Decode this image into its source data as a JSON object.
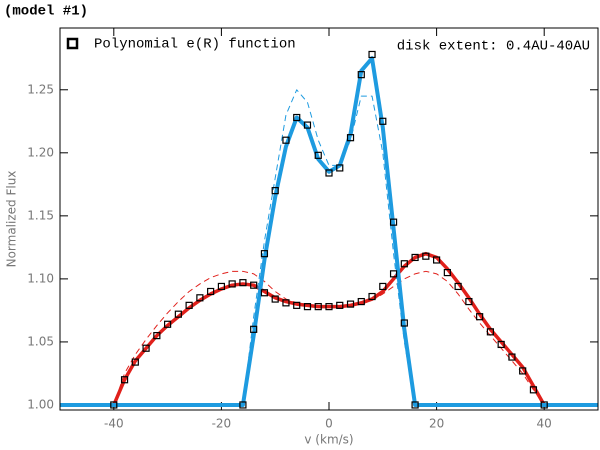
{
  "chart_data": {
    "type": "line",
    "title": "(model #1)",
    "annotation": "disk extent: 0.4AU-40AU",
    "xlabel": "v (km/s)",
    "ylabel": "Normalized Flux",
    "xlim": [
      -50,
      50
    ],
    "ylim": [
      0.996,
      1.299
    ],
    "xticks": [
      -40,
      -20,
      0,
      20,
      40
    ],
    "yticks": [
      {
        "value": 1.0,
        "label": "1.00"
      },
      {
        "value": 1.05,
        "label": "1.05"
      },
      {
        "value": 1.1,
        "label": "1.10"
      },
      {
        "value": 1.15,
        "label": "1.15"
      },
      {
        "value": 1.2,
        "label": "1.20"
      },
      {
        "value": 1.25,
        "label": "1.25"
      }
    ],
    "legend_loc": "upper left",
    "x": [
      -50,
      -48,
      -46,
      -44,
      -42,
      -40,
      -38,
      -36,
      -34,
      -32,
      -30,
      -28,
      -26,
      -24,
      -22,
      -20,
      -18,
      -16,
      -14,
      -12,
      -10,
      -8,
      -6,
      -4,
      -2,
      0,
      2,
      4,
      6,
      8,
      10,
      12,
      14,
      16,
      18,
      20,
      22,
      24,
      26,
      28,
      30,
      32,
      34,
      36,
      38,
      40,
      42,
      44,
      46,
      48,
      50
    ],
    "series": [
      {
        "color": "#e0201b",
        "style": "solid",
        "width": 3.5,
        "values": [
          1,
          1,
          1,
          1,
          1,
          1.0,
          1.02,
          1.035,
          1.045,
          1.055,
          1.063,
          1.07,
          1.077,
          1.083,
          1.088,
          1.092,
          1.095,
          1.096,
          1.095,
          1.09,
          1.085,
          1.082,
          1.08,
          1.079,
          1.078,
          1.078,
          1.078,
          1.079,
          1.081,
          1.084,
          1.09,
          1.1,
          1.11,
          1.117,
          1.12,
          1.117,
          1.108,
          1.097,
          1.085,
          1.072,
          1.06,
          1.05,
          1.04,
          1.03,
          1.015,
          1.0,
          1,
          1,
          1,
          1,
          1
        ]
      },
      {
        "color": "#e0201b",
        "style": "dashed",
        "width": 1,
        "values": [
          1,
          1,
          1,
          1,
          1,
          1.0,
          1.025,
          1.04,
          1.052,
          1.063,
          1.073,
          1.082,
          1.09,
          1.096,
          1.101,
          1.104,
          1.106,
          1.106,
          1.104,
          1.098,
          1.09,
          1.084,
          1.081,
          1.079,
          1.078,
          1.078,
          1.078,
          1.079,
          1.08,
          1.083,
          1.088,
          1.094,
          1.1,
          1.104,
          1.106,
          1.104,
          1.098,
          1.088,
          1.076,
          1.065,
          1.055,
          1.045,
          1.035,
          1.025,
          1.012,
          1.0,
          1,
          1,
          1,
          1,
          1
        ]
      },
      {
        "color": "#1e9be0",
        "style": "solid",
        "width": 4,
        "values": [
          1,
          1,
          1,
          1,
          1,
          1,
          1,
          1,
          1,
          1,
          1,
          1,
          1,
          1,
          1,
          1,
          1,
          1.0,
          1.055,
          1.115,
          1.165,
          1.205,
          1.228,
          1.22,
          1.195,
          1.185,
          1.19,
          1.215,
          1.265,
          1.275,
          1.22,
          1.14,
          1.06,
          1.0,
          1,
          1,
          1,
          1,
          1,
          1,
          1,
          1,
          1,
          1,
          1,
          1,
          1,
          1,
          1,
          1,
          1
        ]
      },
      {
        "color": "#1e9be0",
        "style": "dashed",
        "width": 1,
        "values": [
          1,
          1,
          1,
          1,
          1,
          1,
          1,
          1,
          1,
          1,
          1,
          1,
          1,
          1,
          1,
          1,
          1,
          1.0,
          1.07,
          1.13,
          1.18,
          1.23,
          1.25,
          1.24,
          1.21,
          1.19,
          1.19,
          1.21,
          1.245,
          1.245,
          1.2,
          1.12,
          1.05,
          1.0,
          1,
          1,
          1,
          1,
          1,
          1,
          1,
          1,
          1,
          1,
          1,
          1,
          1,
          1,
          1,
          1,
          1
        ]
      },
      {
        "name": "Polynomial e(R) function",
        "color": "#000000",
        "style": "markers",
        "values": [
          null,
          null,
          null,
          null,
          null,
          null,
          null,
          null,
          null,
          null,
          null,
          null,
          null,
          null,
          null,
          null,
          null,
          1.0,
          1.06,
          1.12,
          1.17,
          1.21,
          1.228,
          1.222,
          1.198,
          1.184,
          1.188,
          1.212,
          1.262,
          1.278,
          1.225,
          1.145,
          1.065,
          1.0,
          null,
          null,
          null,
          null,
          null,
          null,
          null,
          null,
          null,
          null,
          null,
          null,
          null,
          null,
          null,
          null,
          null
        ]
      },
      {
        "color": "#000000",
        "style": "markers",
        "values": [
          null,
          null,
          null,
          null,
          null,
          1.0,
          1.02,
          1.034,
          1.045,
          1.055,
          1.064,
          1.072,
          1.079,
          1.085,
          1.09,
          1.094,
          1.096,
          1.097,
          1.095,
          1.089,
          1.084,
          1.081,
          1.079,
          1.078,
          1.078,
          1.078,
          1.079,
          1.08,
          1.082,
          1.086,
          1.094,
          1.104,
          1.112,
          1.117,
          1.118,
          1.115,
          1.105,
          1.094,
          1.082,
          1.07,
          1.058,
          1.048,
          1.038,
          1.027,
          1.012,
          1.0,
          null,
          null,
          null,
          null,
          null
        ]
      }
    ]
  }
}
